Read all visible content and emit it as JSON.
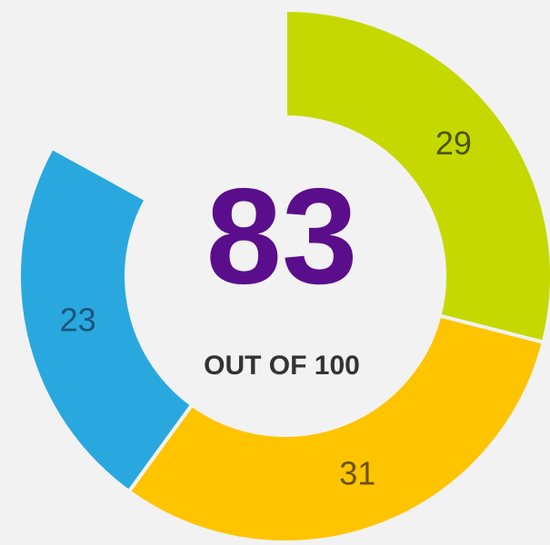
{
  "chart_data": {
    "type": "donut",
    "values": [
      29,
      31,
      23
    ],
    "colors": [
      "#c5d900",
      "#ffc400",
      "#29a8e0"
    ],
    "label_colors": [
      "#4b5500",
      "#6b5200",
      "#1b557a"
    ],
    "total": 100,
    "center_value": "83",
    "center_caption": "OUT OF",
    "center_color": "#5a0e8c"
  }
}
